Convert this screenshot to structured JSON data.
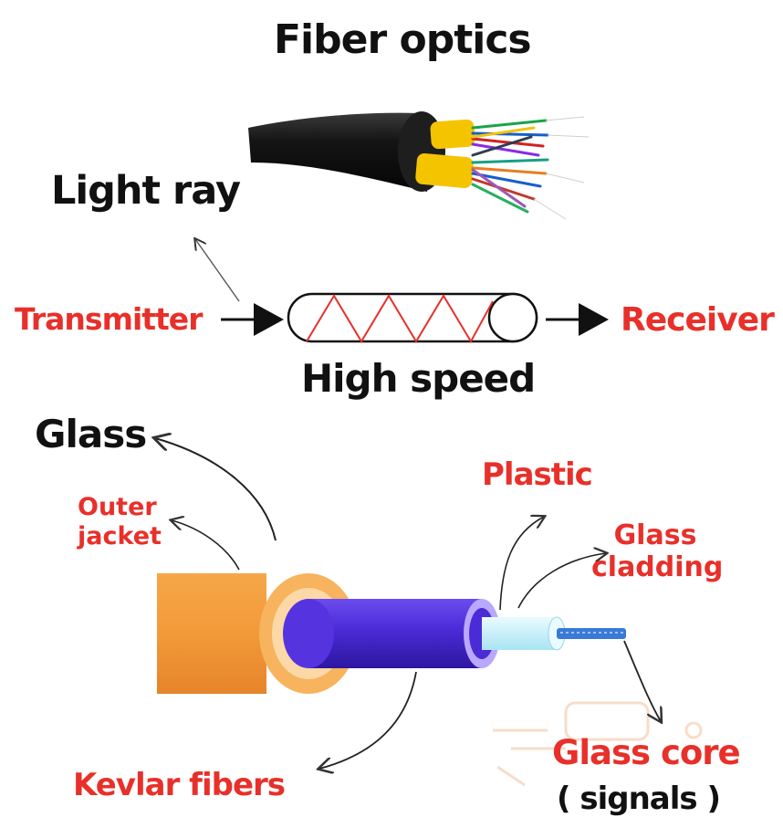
{
  "title": "Fiber optics",
  "labels": {
    "light_ray": "Light ray",
    "transmitter": "Transmitter",
    "receiver": "Receiver",
    "high_speed": "High speed",
    "glass": "Glass",
    "outer_jacket": "Outer jacket",
    "plastic": "Plastic",
    "glass_cladding": "Glass cladding",
    "kevlar_fibers": "Kevlar fibers",
    "glass_core": "Glass core",
    "signals": "( signals )"
  },
  "colors": {
    "label_dark": "#111111",
    "label_red": "#e8302a",
    "jacket_orange": "#f29a3a",
    "kevlar_purple": "#4a2bd6",
    "cladding_cyan": "#c9f2fb",
    "core_blue": "#3a7ad6",
    "cable_black": "#151515",
    "tape_yellow": "#f5c400"
  }
}
